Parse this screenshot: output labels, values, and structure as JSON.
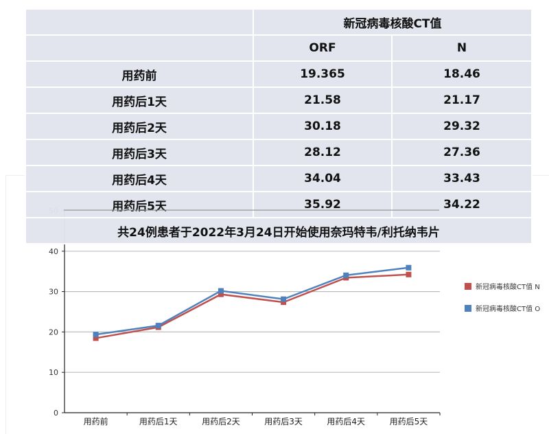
{
  "table": {
    "group_header": "新冠病毒核酸CT值",
    "columns": [
      "ORF",
      "N"
    ],
    "rows": [
      {
        "label": "用药前",
        "orf": "19.365",
        "n": "18.46"
      },
      {
        "label": "用药后1天",
        "orf": "21.58",
        "n": "21.17"
      },
      {
        "label": "用药后2天",
        "orf": "30.18",
        "n": "29.32"
      },
      {
        "label": "用药后3天",
        "orf": "28.12",
        "n": "27.36"
      },
      {
        "label": "用药后4天",
        "orf": "34.04",
        "n": "33.43"
      },
      {
        "label": "用药后5天",
        "orf": "35.92",
        "n": "34.22"
      }
    ],
    "caption": "共24例患者于2022年3月24日开始使用奈玛特韦/利托纳韦片"
  },
  "chart_data": {
    "type": "line",
    "categories": [
      "用药前",
      "用药后1天",
      "用药后2天",
      "用药后3天",
      "用药后4天",
      "用药后5天"
    ],
    "series": [
      {
        "name": "新冠病毒核酸CT值 N",
        "color": "#c0504d",
        "values": [
          18.46,
          21.17,
          29.32,
          27.36,
          33.43,
          34.22
        ]
      },
      {
        "name": "新冠病毒核酸CT值 O",
        "color": "#4f81bd",
        "values": [
          19.365,
          21.58,
          30.18,
          28.12,
          34.04,
          35.92
        ]
      }
    ],
    "ylim": [
      0,
      50
    ],
    "yticks": [
      "0",
      "10",
      "20",
      "30",
      "40",
      "50"
    ],
    "grid": true,
    "legend": "right"
  }
}
